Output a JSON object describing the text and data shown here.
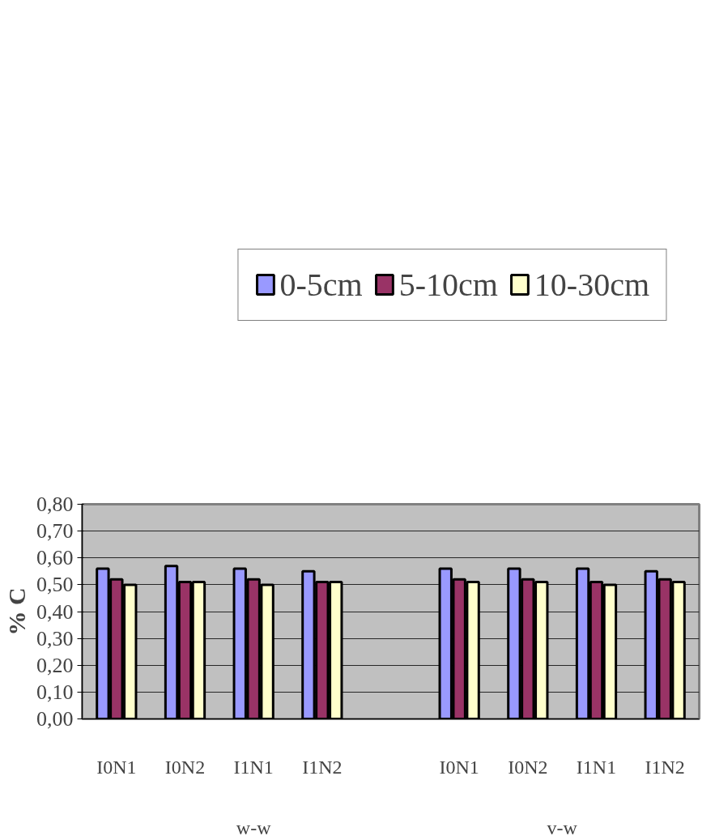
{
  "chart_data": {
    "type": "bar",
    "ylabel": "% C",
    "categories": [
      "I0N1",
      "I0N2",
      "I1N1",
      "I1N2",
      null,
      "I0N1",
      "I0N2",
      "I1N1",
      "I1N2"
    ],
    "annotations": [
      "w-w",
      "v-w"
    ],
    "series": [
      {
        "name": "0-5cm",
        "color": "#9999ff",
        "values": [
          0.56,
          0.57,
          0.56,
          0.55,
          null,
          0.56,
          0.56,
          0.56,
          0.55
        ]
      },
      {
        "name": "5-10cm",
        "color": "#993366",
        "values": [
          0.52,
          0.51,
          0.52,
          0.51,
          null,
          0.52,
          0.52,
          0.51,
          0.52
        ]
      },
      {
        "name": "10-30cm",
        "color": "#ffffcc",
        "values": [
          0.5,
          0.51,
          0.5,
          0.51,
          null,
          0.51,
          0.51,
          0.5,
          0.51
        ]
      }
    ],
    "ylim": [
      0,
      0.8
    ],
    "yticks": [
      {
        "value": 0,
        "label": "0,00"
      },
      {
        "value": 0.1,
        "label": "0,10"
      },
      {
        "value": 0.2,
        "label": "0,20"
      },
      {
        "value": 0.3,
        "label": "0,30"
      },
      {
        "value": 0.4,
        "label": "0,40"
      },
      {
        "value": 0.5,
        "label": "0,50"
      },
      {
        "value": 0.6,
        "label": "0,60"
      },
      {
        "value": 0.7,
        "label": "0,70"
      },
      {
        "value": 0.8,
        "label": "0,80"
      }
    ],
    "grid": "y",
    "legend": "top"
  }
}
